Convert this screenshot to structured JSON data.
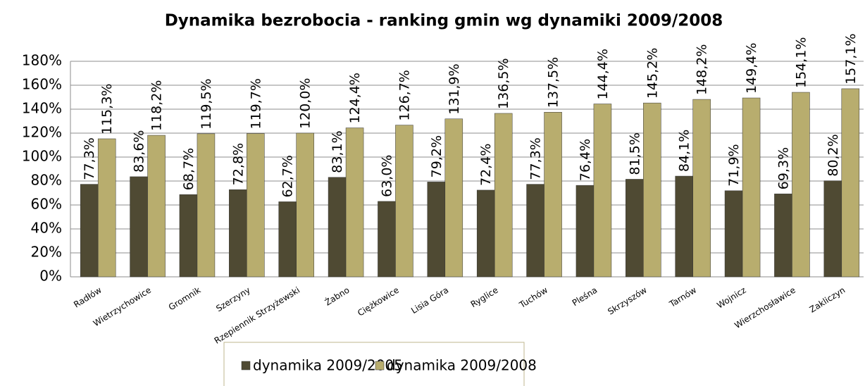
{
  "chart_data": {
    "type": "bar",
    "title": "Dynamika bezrobocia  - ranking gmin wg dynamiki 2009/2008",
    "categories": [
      "Radłów",
      "Wietrzychowice",
      "Gromnik",
      "Szerzyny",
      "Rzepiennik Strzyżewski",
      "Żabno",
      "Ciężkowice",
      "Lisia Góra",
      "Ryglice",
      "Tuchów",
      "Pleśna",
      "Skrzyszów",
      "Tarnów",
      "Wojnicz",
      "Wierzchosławice",
      "Zakliczyn"
    ],
    "series": [
      {
        "name": "dynamika 2009/2005",
        "color": "#4f4a33",
        "values": [
          77.3,
          83.6,
          68.7,
          72.8,
          62.7,
          83.1,
          63.0,
          79.2,
          72.4,
          77.3,
          76.4,
          81.5,
          84.1,
          71.9,
          69.3,
          80.2
        ],
        "value_labels": [
          "77,3%",
          "83,6%",
          "68,7%",
          "72,8%",
          "62,7%",
          "83,1%",
          "63,0%",
          "79,2%",
          "72,4%",
          "77,3%",
          "76,4%",
          "81,5%",
          "84,1%",
          "71,9%",
          "69,3%",
          "80,2%"
        ]
      },
      {
        "name": "dynamika 2009/2008",
        "color": "#b8ad6e",
        "values": [
          115.3,
          118.2,
          119.5,
          119.7,
          120.0,
          124.4,
          126.7,
          131.9,
          136.5,
          137.5,
          144.4,
          145.2,
          148.2,
          149.4,
          154.1,
          157.1
        ],
        "value_labels": [
          "115,3%",
          "118,2%",
          "119,5%",
          "119,7%",
          "120,0%",
          "124,4%",
          "126,7%",
          "131,9%",
          "136,5%",
          "137,5%",
          "144,4%",
          "145,2%",
          "148,2%",
          "149,4%",
          "154,1%",
          "157,1%"
        ]
      }
    ],
    "ylim": [
      0,
      180
    ],
    "yticks": [
      {
        "value": 0,
        "label": "0%"
      },
      {
        "value": 20,
        "label": "20%"
      },
      {
        "value": 40,
        "label": "40%"
      },
      {
        "value": 60,
        "label": "60%"
      },
      {
        "value": 80,
        "label": "80%"
      },
      {
        "value": 100,
        "label": "100%"
      },
      {
        "value": 120,
        "label": "120%"
      },
      {
        "value": 140,
        "label": "140%"
      },
      {
        "value": 160,
        "label": "160%"
      },
      {
        "value": 180,
        "label": "180%"
      }
    ],
    "grid": true,
    "legend": "bottom"
  }
}
